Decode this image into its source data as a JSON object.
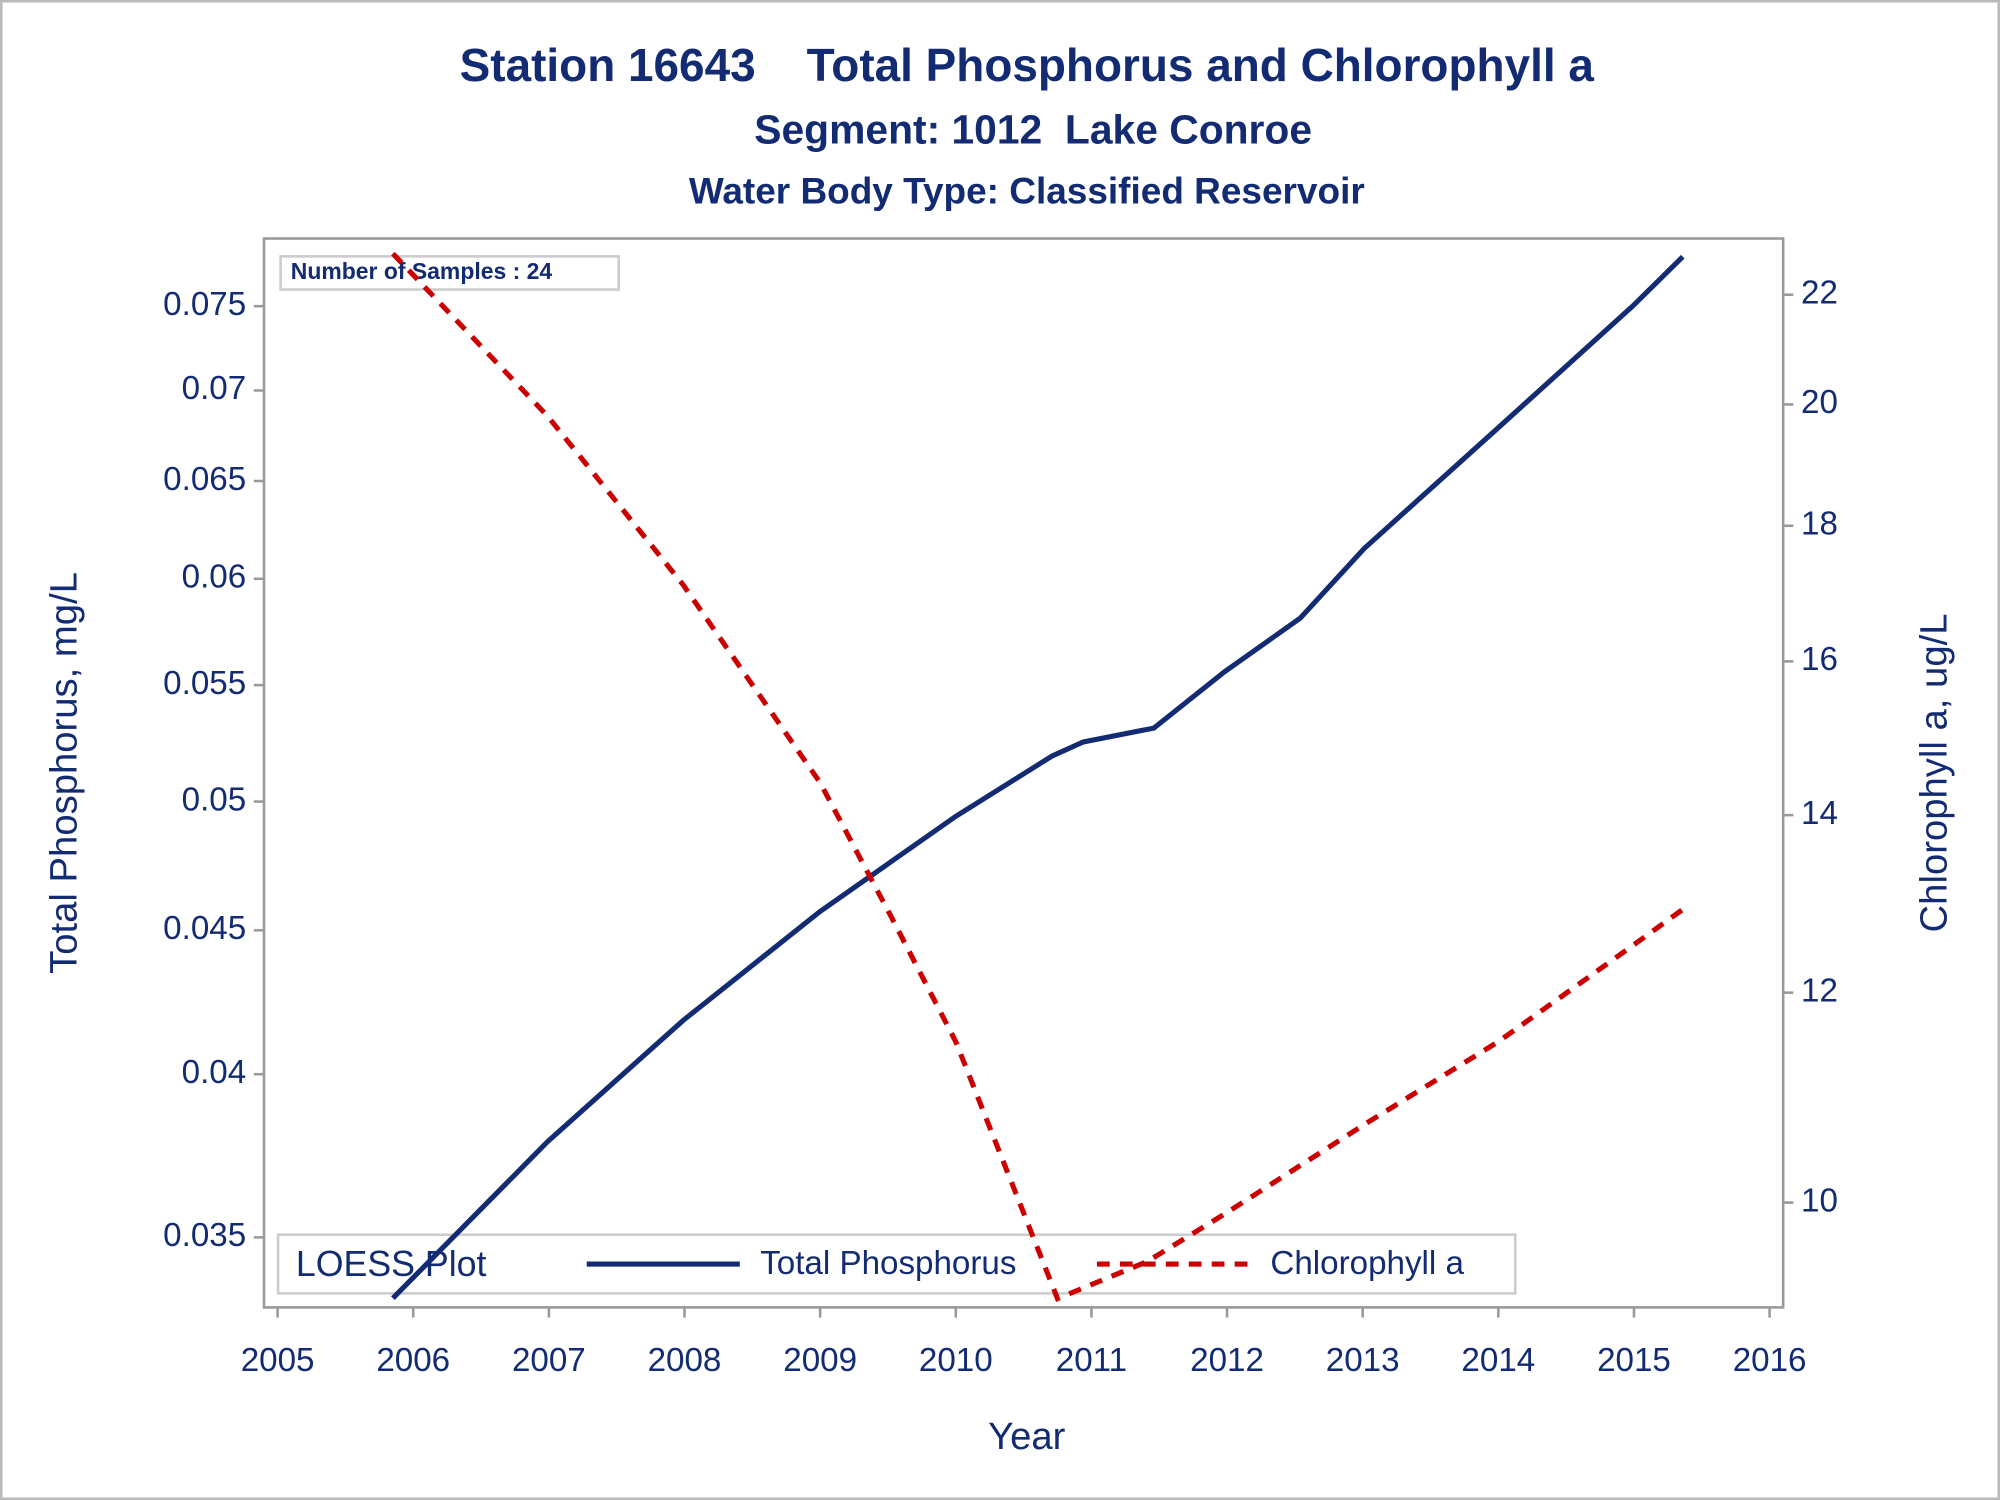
{
  "chart_data": {
    "type": "line",
    "title": "Station 16643    Total Phosphorus and Chlorophyll a",
    "subtitle": "Segment: 1012  Lake Conroe",
    "subtitle2": "Water Body Type: Classified Reservoir",
    "annotation": "Number of Samples : 24",
    "legend_title": "LOESS Plot",
    "xlabel": "Year",
    "ylabel": "Total Phosphorus, mg/L",
    "y2label": "Chlorophyll a, ug/L",
    "xlim": [
      2004.9,
      2016.1
    ],
    "xticks": [
      2005,
      2006,
      2007,
      2008,
      2009,
      2010,
      2011,
      2012,
      2013,
      2014,
      2015,
      2016
    ],
    "ylim": [
      0.03305,
      0.07927
    ],
    "yticks": [
      0.035,
      0.04,
      0.045,
      0.05,
      0.055,
      0.06,
      0.065,
      0.07,
      0.075
    ],
    "ylog": true,
    "y2lim": [
      9.13,
      23.1
    ],
    "y2ticks": [
      10,
      12,
      14,
      16,
      18,
      20,
      22
    ],
    "y2log": true,
    "legend": "bottom",
    "series": [
      {
        "name": "Total Phosphorus",
        "color": "#122b72",
        "dash": false,
        "x": [
          2005.85,
          2006.99,
          2007.99,
          2009.0,
          2010.0,
          2010.71,
          2010.94,
          2011.46,
          2011.98,
          2012.54,
          2013.01,
          2014.0,
          2014.99,
          2015.36
        ],
        "values": [
          0.0333,
          0.03785,
          0.0418,
          0.0457,
          0.0494,
          0.0519,
          0.0525,
          0.0531,
          0.0556,
          0.0581,
          0.0615,
          0.0679,
          0.075,
          0.0781
        ]
      },
      {
        "name": "Chlorophyll a",
        "color": "#cc0000",
        "dash": true,
        "axis": "y2",
        "x": [
          2005.85,
          2006.99,
          2007.99,
          2009.0,
          2009.53,
          2010.0,
          2010.47,
          2010.75,
          2011.41,
          2011.98,
          2013.01,
          2014.0,
          2014.99,
          2015.36
        ],
        "values": [
          22.8,
          19.8,
          17.1,
          14.4,
          12.8,
          11.5,
          10.0,
          9.2,
          9.5,
          9.9,
          10.7,
          11.5,
          12.5,
          12.9
        ]
      }
    ]
  }
}
